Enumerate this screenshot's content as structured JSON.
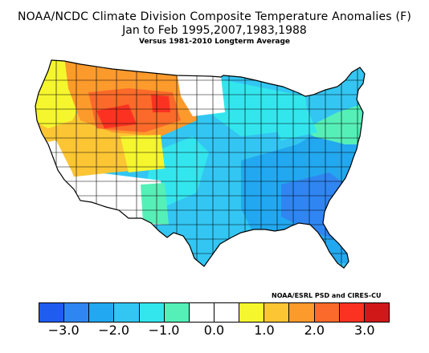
{
  "title": {
    "line1": "NOAA/NCDC Climate Division Composite Temperature Anomalies (F)",
    "line2": "Jan to Feb  1995,2007,1983,1988",
    "line3": "Versus 1981-2010 Longterm Average"
  },
  "credit": "NOAA/ESRL PSD and CIRES-CU",
  "colorbar": {
    "colors": [
      "#1f5cf0",
      "#2f86f2",
      "#22a8f0",
      "#33c6f2",
      "#33e6ee",
      "#55f0b8",
      "#ffffff",
      "#ffffff",
      "#f6f62e",
      "#fbc534",
      "#fd9a2c",
      "#fb6a2a",
      "#fb3222",
      "#d01818"
    ],
    "tick_labels": [
      "−3.0",
      "−2.0",
      "−1.0",
      "0.0",
      "1.0",
      "2.0",
      "3.0"
    ],
    "tick_values": [
      -3.0,
      -2.0,
      -1.0,
      0.0,
      1.0,
      2.0,
      3.0
    ]
  },
  "map": {
    "region": "Contiguous United States climate divisions",
    "regions": [
      {
        "name": "Pacific Northwest coast",
        "anomaly_class": "+1.0 to +1.5"
      },
      {
        "name": "Northern Rockies",
        "anomaly_class": "+1.5 to +2.5"
      },
      {
        "name": "Wyoming high plains",
        "anomaly_class": "+2.5 to +3.0"
      },
      {
        "name": "Great Basin",
        "anomaly_class": "+1.5 to +2.0"
      },
      {
        "name": "California",
        "anomaly_class": "0.0 to +1.0"
      },
      {
        "name": "Desert Southwest",
        "anomaly_class": "-0.5 to +0.5"
      },
      {
        "name": "Southern Plains and Texas",
        "anomaly_class": "-2.0 to -1.0"
      },
      {
        "name": "Upper Midwest",
        "anomaly_class": "-1.5 to -0.5"
      },
      {
        "name": "Southeast",
        "anomaly_class": "-2.5 to -1.5"
      },
      {
        "name": "Northeast",
        "anomaly_class": "-1.5 to -0.5"
      }
    ],
    "colors": {
      "outline": "#000000",
      "neutral": "#ffffff",
      "c_m25": "#2f86f2",
      "c_m20": "#22a8f0",
      "c_m15": "#33c6f2",
      "c_m10": "#33e6ee",
      "c_m05": "#55f0b8",
      "c_p05": "#f6f62e",
      "c_p10": "#fbc534",
      "c_p15": "#fd9a2c",
      "c_p20": "#fb6a2a",
      "c_p25": "#fb3222"
    }
  }
}
